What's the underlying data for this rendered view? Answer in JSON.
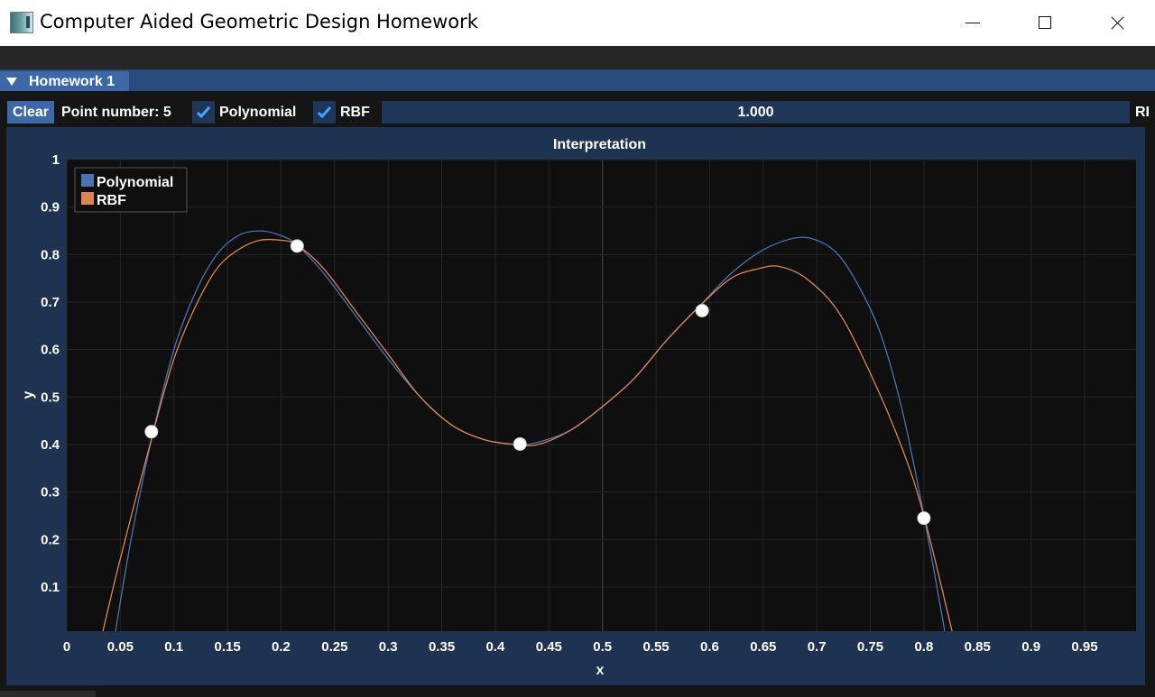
{
  "window": {
    "title": "Computer Aided Geometric Design Homework",
    "icon": "app-window-icon"
  },
  "imgui": {
    "tab_label": "Homework 1"
  },
  "toolbar": {
    "clear_label": "Clear",
    "point_number_label": "Point number: 5",
    "polynomial_label": "Polynomial",
    "polynomial_checked": true,
    "rbf_label": "RBF",
    "rbf_checked": true,
    "slider_value": "1.000",
    "slider_label": "RI"
  },
  "colors": {
    "polynomial": "#4c72b0",
    "rbf": "#dd8452",
    "points": "#ffffff",
    "accent": "#3d68a8"
  },
  "chart_data": {
    "type": "line",
    "title": "Interpretation",
    "xlabel": "x",
    "ylabel": "y",
    "xlim": [
      0,
      0.998
    ],
    "ylim": [
      0.007,
      1.0
    ],
    "xticks": [
      "0",
      "0.05",
      "0.1",
      "0.15",
      "0.2",
      "0.25",
      "0.3",
      "0.35",
      "0.4",
      "0.45",
      "0.5",
      "0.55",
      "0.6",
      "0.65",
      "0.7",
      "0.75",
      "0.8",
      "0.85",
      "0.9",
      "0.95"
    ],
    "yticks": [
      "0.1",
      "0.2",
      "0.3",
      "0.4",
      "0.5",
      "0.6",
      "0.7",
      "0.8",
      "0.9",
      "1"
    ],
    "grid": true,
    "legend": "top-left",
    "series": [
      {
        "name": "Polynomial",
        "x": [
          0.045,
          0.06,
          0.08,
          0.1,
          0.12,
          0.14,
          0.16,
          0.18,
          0.2,
          0.215,
          0.24,
          0.27,
          0.3,
          0.33,
          0.36,
          0.39,
          0.42,
          0.44,
          0.47,
          0.5,
          0.53,
          0.56,
          0.59,
          0.62,
          0.65,
          0.68,
          0.7,
          0.72,
          0.74,
          0.76,
          0.78,
          0.8,
          0.82
        ],
        "y": [
          0.0,
          0.2,
          0.42,
          0.6,
          0.72,
          0.8,
          0.84,
          0.85,
          0.84,
          0.82,
          0.76,
          0.67,
          0.58,
          0.5,
          0.44,
          0.41,
          0.4,
          0.405,
          0.43,
          0.48,
          0.54,
          0.62,
          0.69,
          0.76,
          0.81,
          0.835,
          0.83,
          0.8,
          0.73,
          0.63,
          0.47,
          0.25,
          0.0
        ]
      },
      {
        "name": "RBF",
        "x": [
          0.033,
          0.05,
          0.08,
          0.1,
          0.12,
          0.14,
          0.16,
          0.18,
          0.2,
          0.215,
          0.24,
          0.27,
          0.3,
          0.33,
          0.36,
          0.39,
          0.42,
          0.44,
          0.47,
          0.5,
          0.53,
          0.56,
          0.59,
          0.62,
          0.645,
          0.665,
          0.69,
          0.72,
          0.75,
          0.78,
          0.8,
          0.827
        ],
        "y": [
          0.0,
          0.16,
          0.42,
          0.58,
          0.69,
          0.77,
          0.81,
          0.83,
          0.83,
          0.82,
          0.77,
          0.68,
          0.59,
          0.5,
          0.44,
          0.41,
          0.4,
          0.4,
          0.43,
          0.48,
          0.54,
          0.62,
          0.69,
          0.75,
          0.77,
          0.775,
          0.75,
          0.68,
          0.55,
          0.39,
          0.25,
          0.0
        ]
      }
    ],
    "points": {
      "x": [
        0.079,
        0.215,
        0.423,
        0.593,
        0.8
      ],
      "y": [
        0.427,
        0.818,
        0.401,
        0.682,
        0.245
      ]
    }
  }
}
